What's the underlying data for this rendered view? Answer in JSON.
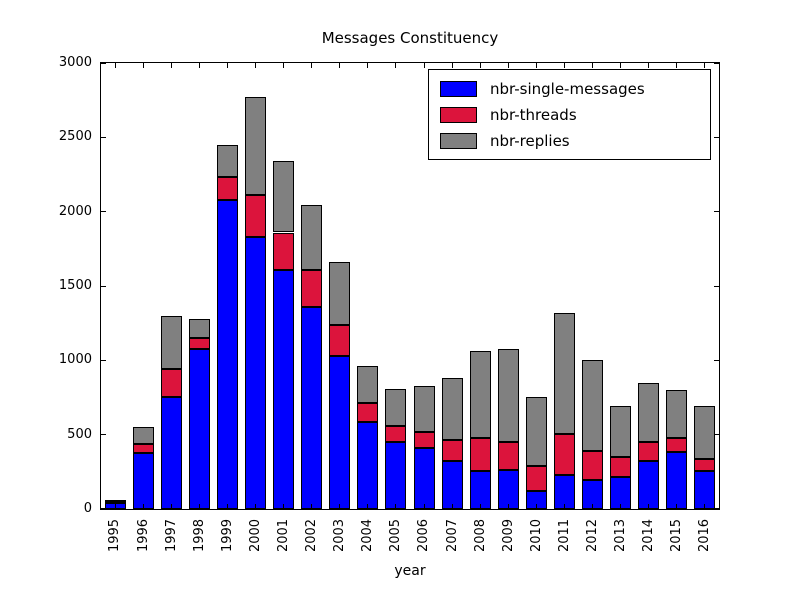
{
  "figure": {
    "title": "Messages Constituency",
    "xlabel": "year"
  },
  "chart_data": {
    "type": "bar",
    "stacked": true,
    "title": "Messages Constituency",
    "xlabel": "year",
    "ylabel": "",
    "ylim": [
      0,
      3000
    ],
    "yticks": [
      0,
      500,
      1000,
      1500,
      2000,
      2500,
      3000
    ],
    "grid": false,
    "legend_position": "upper right",
    "categories": [
      "1995",
      "1996",
      "1997",
      "1998",
      "1999",
      "2000",
      "2001",
      "2002",
      "2003",
      "2004",
      "2005",
      "2006",
      "2007",
      "2008",
      "2009",
      "2010",
      "2011",
      "2012",
      "2013",
      "2014",
      "2015",
      "2016"
    ],
    "series": [
      {
        "name": "nbr-single-messages",
        "color": "#0000ff",
        "values": [
          40,
          375,
          755,
          1075,
          2080,
          1830,
          1610,
          1360,
          1030,
          585,
          450,
          410,
          325,
          255,
          260,
          120,
          230,
          195,
          215,
          325,
          385,
          255
        ]
      },
      {
        "name": "nbr-threads",
        "color": "#dc143c",
        "values": [
          5,
          60,
          190,
          75,
          150,
          280,
          250,
          250,
          210,
          125,
          110,
          105,
          140,
          225,
          190,
          170,
          275,
          195,
          135,
          125,
          95,
          80
        ]
      },
      {
        "name": "nbr-replies",
        "color": "#808080",
        "values": [
          10,
          115,
          355,
          130,
          220,
          660,
          480,
          435,
          420,
          250,
          245,
          315,
          415,
          585,
          625,
          465,
          815,
          610,
          340,
          395,
          320,
          355
        ]
      }
    ]
  },
  "colors": {
    "axis": "#000000",
    "background": "#ffffff"
  }
}
